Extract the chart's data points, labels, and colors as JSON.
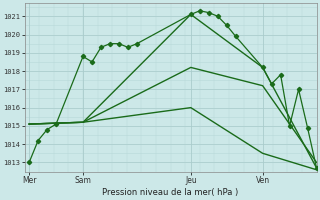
{
  "bg_color": "#cce8e8",
  "grid_color": "#aacccc",
  "line_color": "#1a6b1a",
  "title": "Pression niveau de la mer( hPa )",
  "ylabel_vals": [
    1013,
    1014,
    1015,
    1016,
    1017,
    1018,
    1019,
    1020,
    1021
  ],
  "ylim": [
    1012.5,
    1021.7
  ],
  "xtick_labels": [
    "Mer",
    "Sam",
    "Jeu",
    "Ven"
  ],
  "xtick_positions": [
    0,
    6,
    18,
    26
  ],
  "xlim": [
    -0.5,
    32
  ],
  "series1_x": [
    0,
    1,
    2,
    3,
    6,
    7,
    8,
    9,
    10,
    11,
    12,
    18,
    19,
    20,
    21,
    22,
    23,
    26,
    27,
    28,
    29,
    30,
    31,
    32
  ],
  "series1_y": [
    1013.0,
    1014.2,
    1014.8,
    1015.1,
    1018.8,
    1018.5,
    1019.3,
    1019.5,
    1019.5,
    1019.3,
    1019.5,
    1021.1,
    1021.3,
    1021.2,
    1021.0,
    1020.5,
    1019.9,
    1018.2,
    1017.3,
    1017.8,
    1015.0,
    1017.0,
    1014.9,
    1012.7
  ],
  "series2_x": [
    0,
    6,
    18,
    26,
    32
  ],
  "series2_y": [
    1015.1,
    1015.2,
    1021.1,
    1018.2,
    1012.7
  ],
  "series3_x": [
    0,
    6,
    18,
    26,
    32
  ],
  "series3_y": [
    1015.1,
    1015.2,
    1018.2,
    1017.2,
    1013.0
  ],
  "series4_x": [
    0,
    6,
    18,
    26,
    32
  ],
  "series4_y": [
    1015.1,
    1015.2,
    1016.0,
    1013.5,
    1012.6
  ],
  "vline_positions": [
    0,
    6,
    18,
    26
  ],
  "hgrid_minor_step": 1,
  "fine_grid_color": "#b8d8d8"
}
